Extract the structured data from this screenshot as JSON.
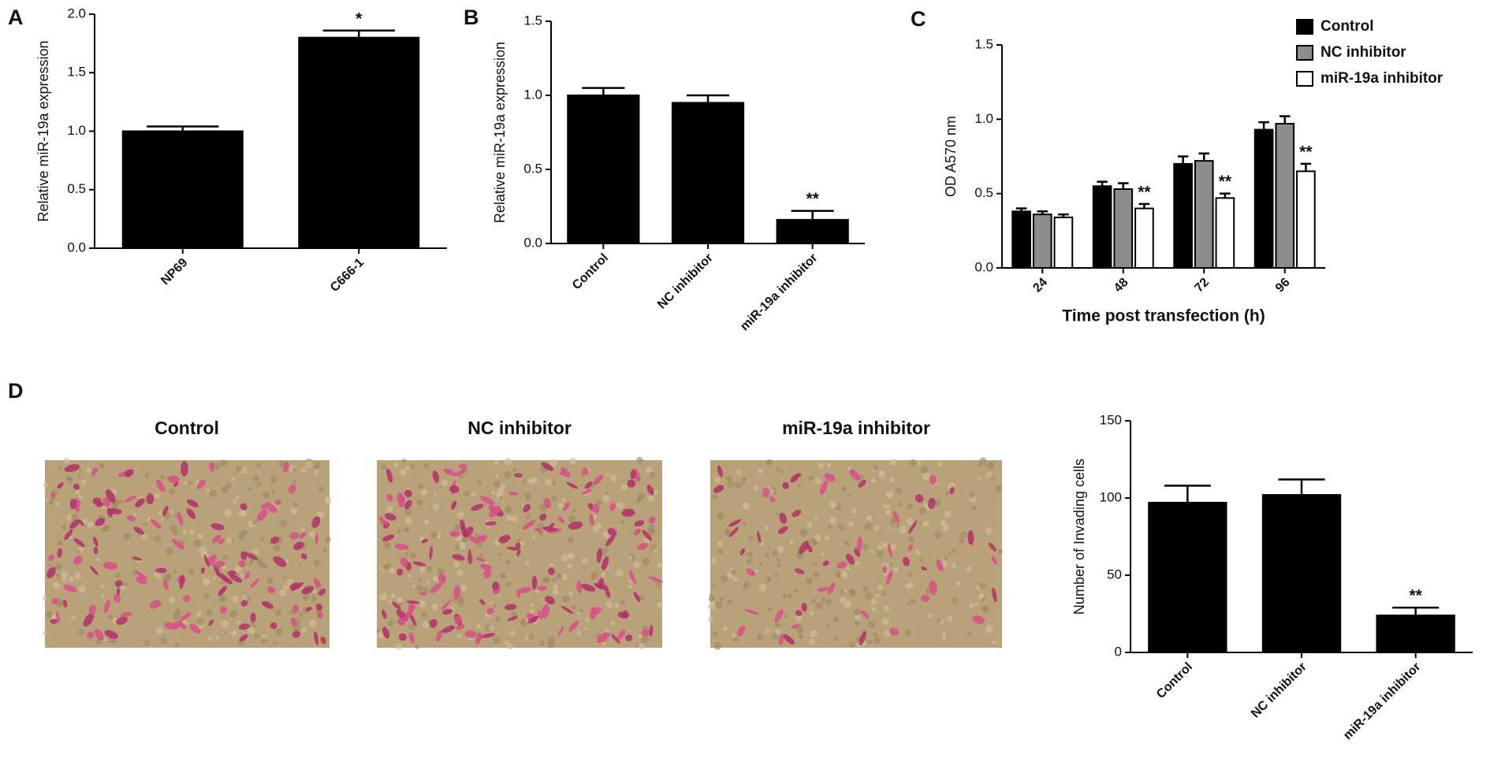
{
  "panel_labels": [
    "A",
    "B",
    "C",
    "D"
  ],
  "micrographs": [
    {
      "title": "Control"
    },
    {
      "title": "NC inhibitor"
    },
    {
      "title": "miR-19a inhibitor"
    }
  ],
  "chart_data": [
    {
      "type": "bar",
      "categories": [
        "NP69",
        "C666-1"
      ],
      "values": [
        1.0,
        1.8
      ],
      "errors": [
        0.04,
        0.06
      ],
      "color": "#000000",
      "ylabel": "Relative miR-19a expression",
      "ylim": [
        0,
        2.0
      ],
      "yticks": [
        {
          "value": 0,
          "label": "0.0"
        },
        {
          "value": 0.5,
          "label": "0.5"
        },
        {
          "value": 1,
          "label": "1.0"
        },
        {
          "value": 1.5,
          "label": "1.5"
        },
        {
          "value": 2,
          "label": "2.0"
        }
      ],
      "annotations": [
        {
          "index": 1,
          "text": "*"
        }
      ]
    },
    {
      "type": "bar",
      "categories": [
        "Control",
        "NC inhibitor",
        "miR-19a inhibitor"
      ],
      "values": [
        1.0,
        0.95,
        0.16
      ],
      "errors": [
        0.05,
        0.05,
        0.06
      ],
      "color": "#000000",
      "ylabel": "Relative miR-19a expression",
      "ylim": [
        0,
        1.5
      ],
      "yticks": [
        {
          "value": 0,
          "label": "0.0"
        },
        {
          "value": 0.5,
          "label": "0.5"
        },
        {
          "value": 1,
          "label": "1.0"
        },
        {
          "value": 1.5,
          "label": "1.5"
        }
      ],
      "annotations": [
        {
          "index": 2,
          "text": "**"
        }
      ]
    },
    {
      "type": "grouped_bar",
      "categories": [
        "24",
        "48",
        "72",
        "96"
      ],
      "series": [
        {
          "name": "Control",
          "color": "#000000",
          "values": [
            0.38,
            0.55,
            0.7,
            0.93
          ],
          "errors": [
            0.02,
            0.03,
            0.05,
            0.05
          ]
        },
        {
          "name": "NC inhibitor",
          "color": "#8c8c8c",
          "values": [
            0.36,
            0.53,
            0.72,
            0.97
          ],
          "errors": [
            0.02,
            0.04,
            0.05,
            0.05
          ]
        },
        {
          "name": "miR-19a inhibitor",
          "color": "#ffffff",
          "values": [
            0.34,
            0.4,
            0.47,
            0.65
          ],
          "errors": [
            0.02,
            0.03,
            0.03,
            0.05
          ]
        }
      ],
      "xlabel": "Time post transfection (h)",
      "ylabel": "OD A570 nm",
      "ylim": [
        0,
        1.5
      ],
      "yticks": [
        {
          "value": 0,
          "label": "0.0"
        },
        {
          "value": 0.5,
          "label": "0.5"
        },
        {
          "value": 1,
          "label": "1.0"
        },
        {
          "value": 1.5,
          "label": "1.5"
        }
      ],
      "legend": "top-right",
      "annotations": [
        {
          "series": 2,
          "index": 1,
          "text": "**"
        },
        {
          "series": 2,
          "index": 2,
          "text": "**"
        },
        {
          "series": 2,
          "index": 3,
          "text": "**"
        }
      ]
    },
    {
      "type": "bar",
      "categories": [
        "Control",
        "NC inhibitor",
        "miR-19a inhibitor"
      ],
      "values": [
        97,
        102,
        24
      ],
      "errors": [
        11,
        10,
        5
      ],
      "color": "#000000",
      "ylabel": "Number of Invading cells",
      "ylim": [
        0,
        150
      ],
      "yticks": [
        0,
        50,
        100,
        150
      ],
      "annotations": [
        {
          "index": 2,
          "text": "**"
        }
      ]
    }
  ]
}
